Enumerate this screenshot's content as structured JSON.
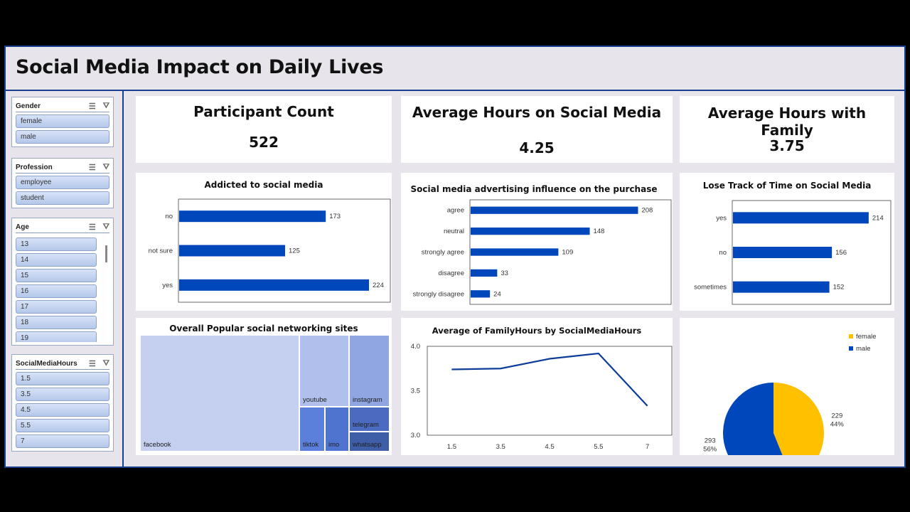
{
  "title": "Social Media Impact on Daily Lives",
  "slicers": [
    {
      "label": "Gender",
      "items": [
        "female",
        "male"
      ]
    },
    {
      "label": "Profession",
      "items": [
        "employee",
        "student"
      ]
    },
    {
      "label": "Age",
      "items": [
        "13",
        "14",
        "15",
        "16",
        "17",
        "18",
        "19"
      ]
    },
    {
      "label": "SocialMediaHours",
      "items": [
        "1.5",
        "3.5",
        "4.5",
        "5.5",
        "7"
      ]
    }
  ],
  "kpis": [
    {
      "label": "Participant Count",
      "value": "522"
    },
    {
      "label": "Average Hours on Social Media",
      "value": "4.25"
    },
    {
      "label": "Average Hours with Family",
      "value": "3.75"
    }
  ],
  "colors": {
    "bar": "#0047bb",
    "line": "#0d3d99",
    "female": "#ffc000",
    "male": "#0047bb"
  },
  "chart_data": [
    {
      "type": "bar",
      "orientation": "horizontal",
      "title": "Addicted to social media",
      "categories": [
        "no",
        "not sure",
        "yes"
      ],
      "values": [
        173,
        125,
        224
      ],
      "xlim": [
        0,
        250
      ]
    },
    {
      "type": "bar",
      "orientation": "horizontal",
      "title": "Social media advertising influence on the purchase",
      "categories": [
        "agree",
        "neutral",
        "strongly agree",
        "disagree",
        "strongly disagree"
      ],
      "values": [
        208,
        148,
        109,
        33,
        24
      ],
      "xlim": [
        0,
        250
      ]
    },
    {
      "type": "bar",
      "orientation": "horizontal",
      "title": "Lose Track of Time on Social Media",
      "categories": [
        "yes",
        "no",
        "sometimes"
      ],
      "values": [
        214,
        156,
        152
      ],
      "xlim": [
        0,
        250
      ]
    },
    {
      "type": "treemap",
      "title": "Overall Popular social networking sites",
      "categories": [
        "facebook",
        "youtube",
        "instagram",
        "tiktok",
        "imo",
        "telegram",
        "whatsapp"
      ]
    },
    {
      "type": "line",
      "title": "Average of FamilyHours by SocialMediaHours",
      "categories": [
        "1.5",
        "3.5",
        "4.5",
        "5.5",
        "7"
      ],
      "values": [
        3.74,
        3.75,
        3.86,
        3.92,
        3.33
      ],
      "ylim": [
        3.0,
        4.0
      ],
      "yticks": [
        "3.0",
        "3.5",
        "4.0"
      ]
    },
    {
      "type": "pie",
      "categories": [
        "female",
        "male"
      ],
      "values": [
        229,
        293
      ],
      "labels": [
        "44%",
        "56%"
      ],
      "legend": "top-right"
    }
  ]
}
